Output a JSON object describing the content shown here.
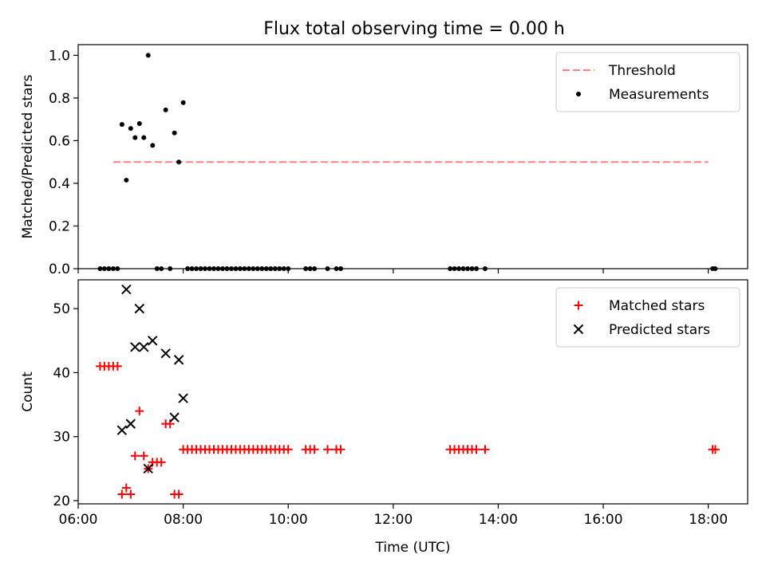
{
  "title": "Flux total observing time = 0.00 h",
  "chart_data": [
    {
      "type": "scatter",
      "ylabel": "Matched/Predicted stars",
      "xlabel": "",
      "xlim": [
        "06:00",
        "18:45"
      ],
      "ylim": [
        0,
        1.05
      ],
      "x_ticks": [
        "06:00",
        "08:00",
        "10:00",
        "12:00",
        "14:00",
        "16:00",
        "18:00"
      ],
      "y_ticks": [
        "0.0",
        "0.2",
        "0.4",
        "0.6",
        "0.8",
        "1.0"
      ],
      "legend_position": "upper right",
      "threshold": {
        "name": "Threshold",
        "value": 0.5,
        "x_range": [
          "06:40",
          "18:00"
        ],
        "color": "#ff7f7f"
      },
      "series": [
        {
          "name": "Measurements",
          "marker": "dot",
          "color": "#000000",
          "points": [
            [
              "06:25",
              0
            ],
            [
              "06:30",
              0
            ],
            [
              "06:35",
              0
            ],
            [
              "06:40",
              0
            ],
            [
              "06:45",
              0
            ],
            [
              "06:50",
              0.676
            ],
            [
              "06:55",
              0.415
            ],
            [
              "07:00",
              0.657
            ],
            [
              "07:05",
              0.614
            ],
            [
              "07:10",
              0.68
            ],
            [
              "07:15",
              0.614
            ],
            [
              "07:20",
              1.0
            ],
            [
              "07:25",
              0.578
            ],
            [
              "07:30",
              0
            ],
            [
              "07:35",
              0
            ],
            [
              "07:40",
              0.744
            ],
            [
              "07:45",
              0
            ],
            [
              "07:50",
              0.636
            ],
            [
              "07:55",
              0.5
            ],
            [
              "08:00",
              0.778
            ],
            [
              "08:05",
              0
            ],
            [
              "08:10",
              0
            ],
            [
              "08:15",
              0
            ],
            [
              "08:20",
              0
            ],
            [
              "08:25",
              0
            ],
            [
              "08:30",
              0
            ],
            [
              "08:35",
              0
            ],
            [
              "08:40",
              0
            ],
            [
              "08:45",
              0
            ],
            [
              "08:50",
              0
            ],
            [
              "08:55",
              0
            ],
            [
              "09:00",
              0
            ],
            [
              "09:05",
              0
            ],
            [
              "09:10",
              0
            ],
            [
              "09:15",
              0
            ],
            [
              "09:20",
              0
            ],
            [
              "09:25",
              0
            ],
            [
              "09:30",
              0
            ],
            [
              "09:35",
              0
            ],
            [
              "09:40",
              0
            ],
            [
              "09:45",
              0
            ],
            [
              "09:50",
              0
            ],
            [
              "09:55",
              0
            ],
            [
              "10:00",
              0
            ],
            [
              "10:20",
              0
            ],
            [
              "10:25",
              0
            ],
            [
              "10:30",
              0
            ],
            [
              "10:45",
              0
            ],
            [
              "10:55",
              0
            ],
            [
              "11:00",
              0
            ],
            [
              "13:05",
              0
            ],
            [
              "13:10",
              0
            ],
            [
              "13:15",
              0
            ],
            [
              "13:20",
              0
            ],
            [
              "13:25",
              0
            ],
            [
              "13:30",
              0
            ],
            [
              "13:35",
              0
            ],
            [
              "13:45",
              0
            ],
            [
              "18:05",
              0
            ],
            [
              "18:08",
              0
            ]
          ]
        }
      ]
    },
    {
      "type": "scatter",
      "ylabel": "Count",
      "xlabel": "Time (UTC)",
      "xlim": [
        "06:00",
        "18:45"
      ],
      "ylim": [
        19.5,
        54.5
      ],
      "x_ticks": [
        "06:00",
        "08:00",
        "10:00",
        "12:00",
        "14:00",
        "16:00",
        "18:00"
      ],
      "y_ticks": [
        "20",
        "30",
        "40",
        "50"
      ],
      "legend_position": "upper right",
      "series": [
        {
          "name": "Matched stars",
          "marker": "plus",
          "color": "#ff0000",
          "points": [
            [
              "06:25",
              41
            ],
            [
              "06:30",
              41
            ],
            [
              "06:35",
              41
            ],
            [
              "06:40",
              41
            ],
            [
              "06:45",
              41
            ],
            [
              "06:50",
              21
            ],
            [
              "06:55",
              22
            ],
            [
              "07:00",
              21
            ],
            [
              "07:05",
              27
            ],
            [
              "07:10",
              34
            ],
            [
              "07:15",
              27
            ],
            [
              "07:20",
              25
            ],
            [
              "07:25",
              26
            ],
            [
              "07:30",
              26
            ],
            [
              "07:35",
              26
            ],
            [
              "07:40",
              32
            ],
            [
              "07:45",
              32
            ],
            [
              "07:50",
              21
            ],
            [
              "07:55",
              21
            ],
            [
              "08:00",
              28
            ],
            [
              "08:05",
              28
            ],
            [
              "08:10",
              28
            ],
            [
              "08:15",
              28
            ],
            [
              "08:20",
              28
            ],
            [
              "08:25",
              28
            ],
            [
              "08:30",
              28
            ],
            [
              "08:35",
              28
            ],
            [
              "08:40",
              28
            ],
            [
              "08:45",
              28
            ],
            [
              "08:50",
              28
            ],
            [
              "08:55",
              28
            ],
            [
              "09:00",
              28
            ],
            [
              "09:05",
              28
            ],
            [
              "09:10",
              28
            ],
            [
              "09:15",
              28
            ],
            [
              "09:20",
              28
            ],
            [
              "09:25",
              28
            ],
            [
              "09:30",
              28
            ],
            [
              "09:35",
              28
            ],
            [
              "09:40",
              28
            ],
            [
              "09:45",
              28
            ],
            [
              "09:50",
              28
            ],
            [
              "09:55",
              28
            ],
            [
              "10:00",
              28
            ],
            [
              "10:20",
              28
            ],
            [
              "10:25",
              28
            ],
            [
              "10:30",
              28
            ],
            [
              "10:45",
              28
            ],
            [
              "10:55",
              28
            ],
            [
              "11:00",
              28
            ],
            [
              "13:05",
              28
            ],
            [
              "13:10",
              28
            ],
            [
              "13:15",
              28
            ],
            [
              "13:20",
              28
            ],
            [
              "13:25",
              28
            ],
            [
              "13:30",
              28
            ],
            [
              "13:35",
              28
            ],
            [
              "13:45",
              28
            ],
            [
              "18:05",
              28
            ],
            [
              "18:08",
              28
            ]
          ]
        },
        {
          "name": "Predicted stars",
          "marker": "x",
          "color": "#000000",
          "points": [
            [
              "06:50",
              31
            ],
            [
              "06:55",
              53
            ],
            [
              "07:00",
              32
            ],
            [
              "07:05",
              44
            ],
            [
              "07:10",
              50
            ],
            [
              "07:15",
              44
            ],
            [
              "07:20",
              25
            ],
            [
              "07:25",
              45
            ],
            [
              "07:40",
              43
            ],
            [
              "07:50",
              33
            ],
            [
              "07:55",
              42
            ],
            [
              "08:00",
              36
            ]
          ]
        }
      ]
    }
  ]
}
